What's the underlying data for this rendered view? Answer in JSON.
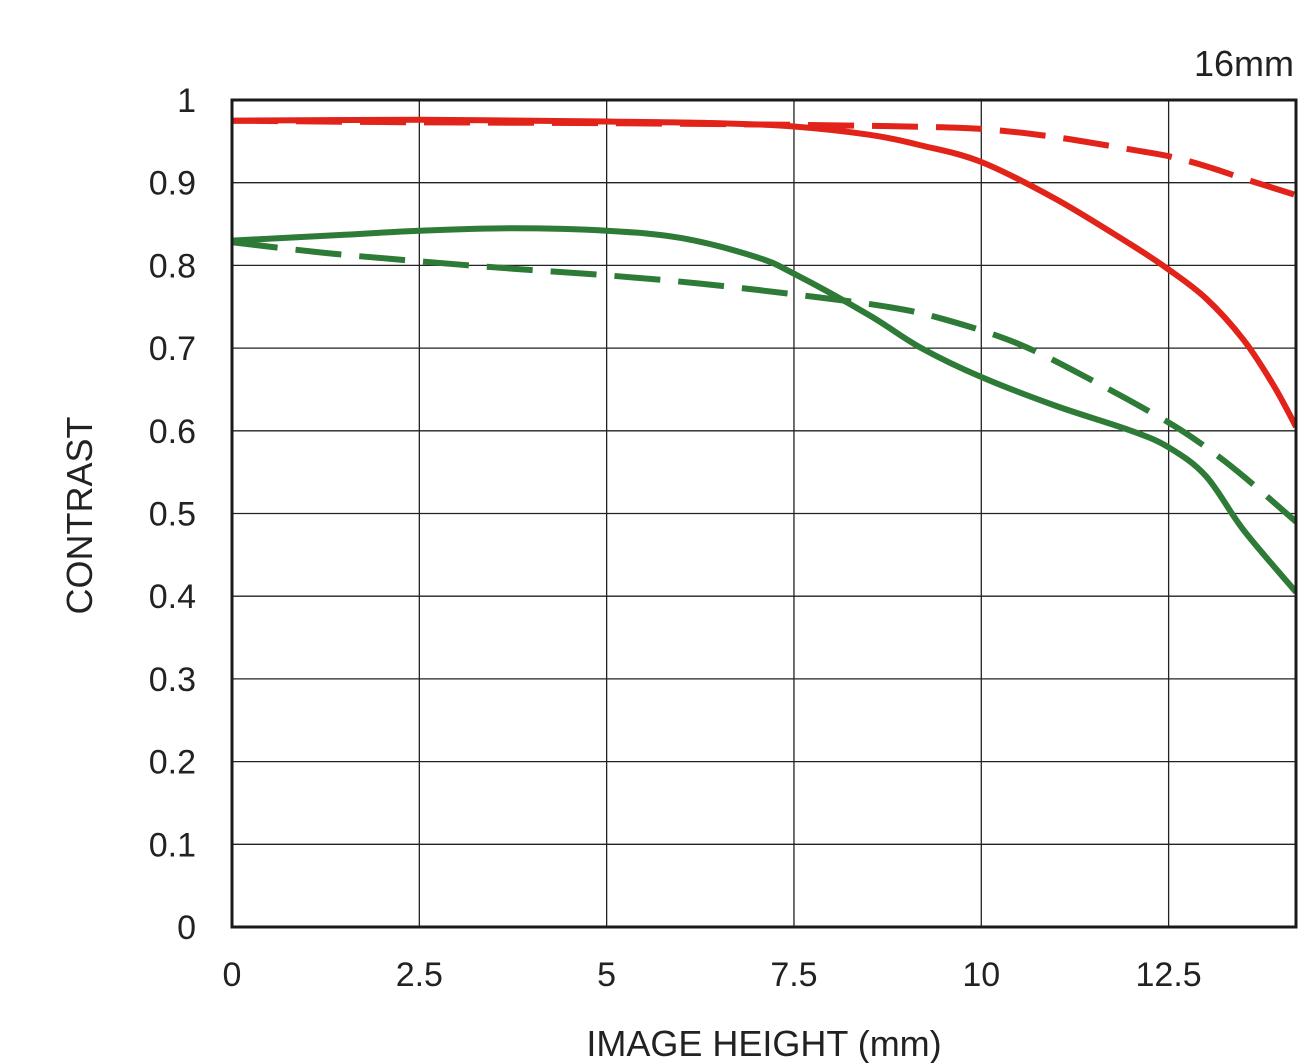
{
  "chart_data": {
    "type": "line",
    "title": "16mm",
    "xlabel": "IMAGE HEIGHT (mm)",
    "ylabel": "CONTRAST",
    "xlim": [
      0,
      14.2
    ],
    "ylim": [
      0,
      1
    ],
    "grid": true,
    "x_ticks": [
      "0",
      "2.5",
      "5",
      "7.5",
      "10",
      "12.5"
    ],
    "y_ticks": [
      "0",
      "0.1",
      "0.2",
      "0.3",
      "0.4",
      "0.5",
      "0.6",
      "0.7",
      "0.8",
      "0.9",
      "1"
    ],
    "colors": {
      "red": "#e2231a",
      "green": "#2e7a37"
    },
    "series": [
      {
        "color": "#e2231a",
        "style": "solid",
        "points": [
          [
            0,
            0.975
          ],
          [
            2.5,
            0.976
          ],
          [
            5,
            0.974
          ],
          [
            6.5,
            0.972
          ],
          [
            7.5,
            0.968
          ],
          [
            8.5,
            0.958
          ],
          [
            9.2,
            0.945
          ],
          [
            10,
            0.925
          ],
          [
            11,
            0.88
          ],
          [
            12,
            0.825
          ],
          [
            12.5,
            0.795
          ],
          [
            13,
            0.76
          ],
          [
            13.5,
            0.71
          ],
          [
            13.9,
            0.655
          ],
          [
            14.2,
            0.605
          ]
        ]
      },
      {
        "color": "#e2231a",
        "style": "dashed",
        "points": [
          [
            0,
            0.975
          ],
          [
            2.5,
            0.973
          ],
          [
            5,
            0.972
          ],
          [
            7.5,
            0.97
          ],
          [
            9,
            0.968
          ],
          [
            10,
            0.965
          ],
          [
            11,
            0.955
          ],
          [
            12,
            0.94
          ],
          [
            12.5,
            0.932
          ],
          [
            13,
            0.92
          ],
          [
            13.5,
            0.905
          ],
          [
            14.2,
            0.885
          ]
        ]
      },
      {
        "color": "#2e7a37",
        "style": "solid",
        "points": [
          [
            0,
            0.83
          ],
          [
            1.5,
            0.837
          ],
          [
            2.5,
            0.842
          ],
          [
            3.75,
            0.845
          ],
          [
            5,
            0.842
          ],
          [
            6,
            0.833
          ],
          [
            7,
            0.81
          ],
          [
            7.5,
            0.79
          ],
          [
            8.5,
            0.74
          ],
          [
            9.2,
            0.7
          ],
          [
            10,
            0.665
          ],
          [
            11,
            0.63
          ],
          [
            12,
            0.6
          ],
          [
            12.5,
            0.58
          ],
          [
            13,
            0.545
          ],
          [
            13.5,
            0.48
          ],
          [
            14.2,
            0.405
          ]
        ]
      },
      {
        "color": "#2e7a37",
        "style": "dashed",
        "points": [
          [
            0,
            0.828
          ],
          [
            1.25,
            0.815
          ],
          [
            2.5,
            0.805
          ],
          [
            3.75,
            0.796
          ],
          [
            5,
            0.788
          ],
          [
            6.25,
            0.778
          ],
          [
            7.5,
            0.765
          ],
          [
            8.75,
            0.75
          ],
          [
            9.5,
            0.735
          ],
          [
            10.5,
            0.705
          ],
          [
            11.5,
            0.66
          ],
          [
            12.5,
            0.61
          ],
          [
            13,
            0.58
          ],
          [
            13.5,
            0.545
          ],
          [
            14.2,
            0.49
          ]
        ]
      }
    ]
  }
}
